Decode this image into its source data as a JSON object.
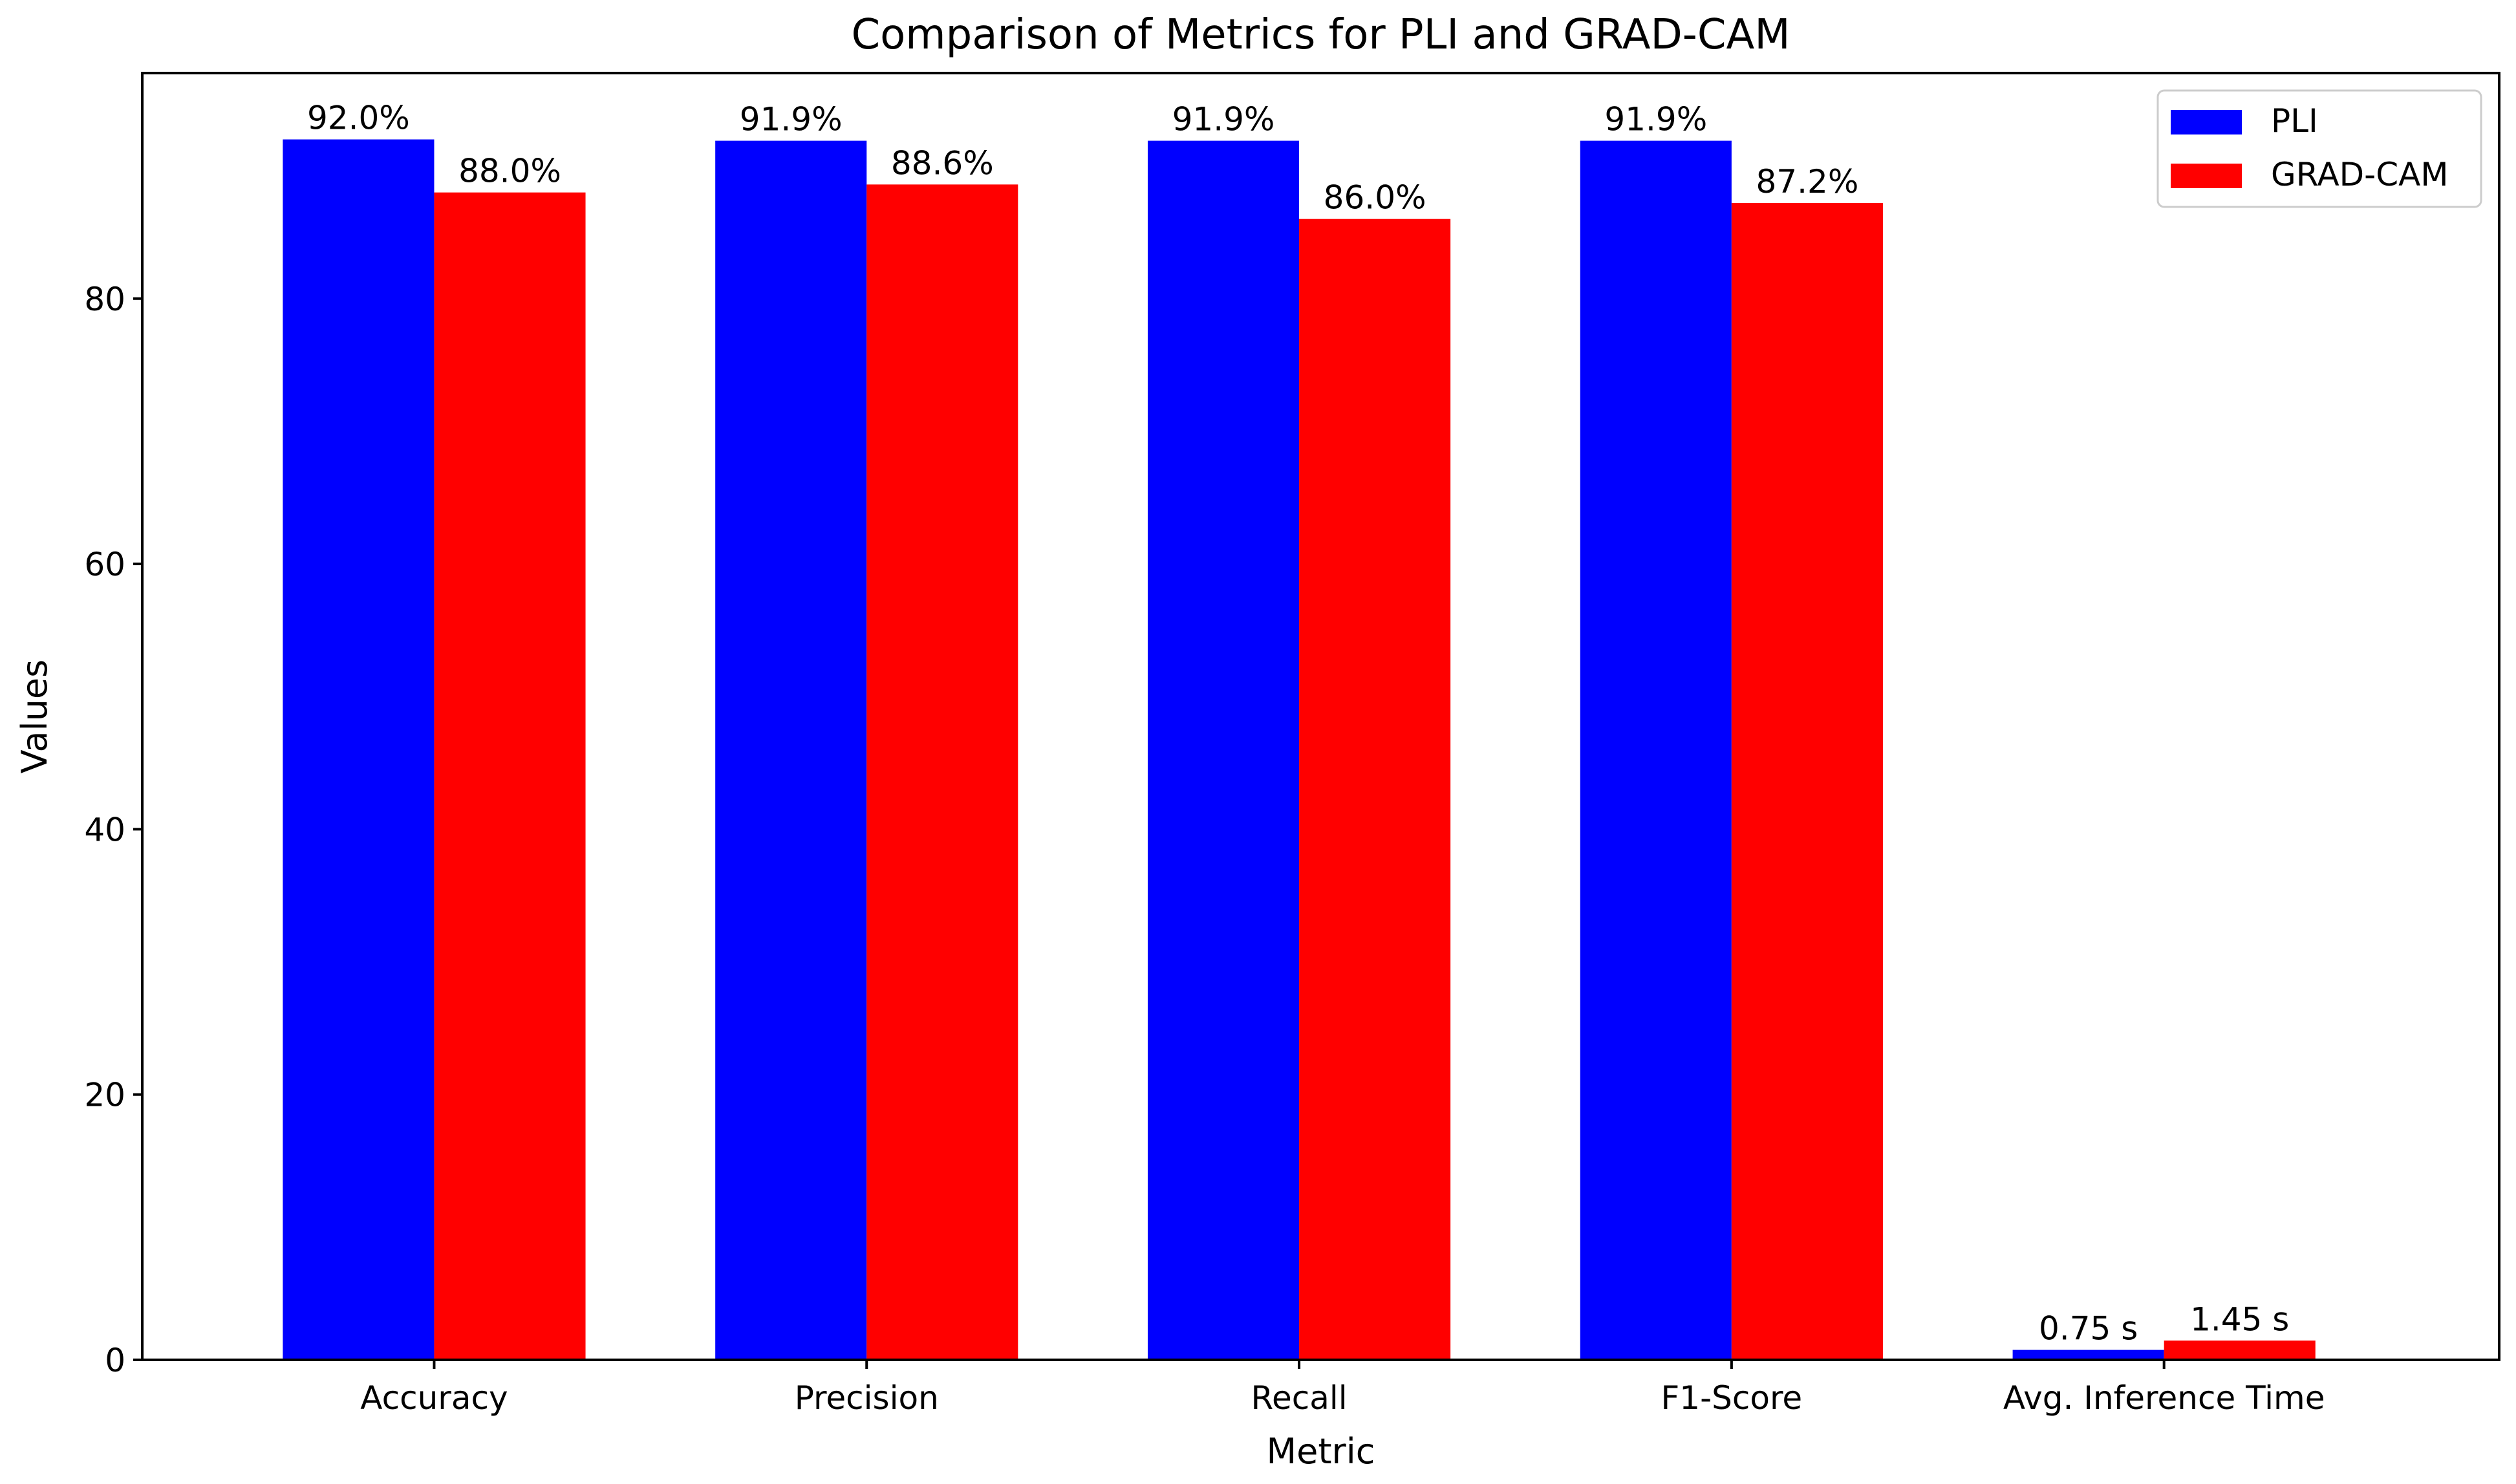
{
  "chart_data": {
    "type": "bar",
    "title": "Comparison of Metrics for PLI and GRAD-CAM",
    "xlabel": "Metric",
    "ylabel": "Values",
    "ylim": [
      0,
      97
    ],
    "yticks": [
      0,
      20,
      40,
      60,
      80
    ],
    "categories": [
      "Accuracy",
      "Precision",
      "Recall",
      "F1-Score",
      "Avg. Inference Time"
    ],
    "series": [
      {
        "name": "PLI",
        "color": "#0000ff",
        "values": [
          92.0,
          91.9,
          91.9,
          91.9,
          0.75
        ],
        "labels": [
          "92.0%",
          "91.9%",
          "91.9%",
          "91.9%",
          "0.75 s"
        ]
      },
      {
        "name": "GRAD-CAM",
        "color": "#ff0000",
        "values": [
          88.0,
          88.6,
          86.0,
          87.2,
          1.45
        ],
        "labels": [
          "88.0%",
          "88.6%",
          "86.0%",
          "87.2%",
          "1.45 s"
        ]
      }
    ],
    "grid": false,
    "legend_position": "top-right"
  }
}
